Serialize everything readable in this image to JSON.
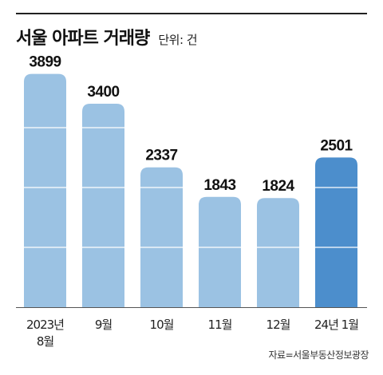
{
  "header": {
    "title": "서울 아파트 거래량",
    "unit": "단위: 건"
  },
  "footer": {
    "source": "자료=서울부동산정보광장"
  },
  "colors": {
    "bar": "#9bc2e3",
    "highlight_bar": "#4c8ecc",
    "gridline": "#ffffff",
    "axis": "#555555",
    "text": "#111111"
  },
  "chart_data": {
    "type": "bar",
    "categories": [
      [
        "2023년",
        "8월"
      ],
      [
        "9월"
      ],
      [
        "10월"
      ],
      [
        "11월"
      ],
      [
        "12월"
      ],
      [
        "24년 1월"
      ]
    ],
    "values": [
      3899,
      3400,
      2337,
      1843,
      1824,
      2501
    ],
    "value_labels": [
      "3899",
      "3400",
      "2337",
      "1843",
      "1824",
      "2501"
    ],
    "highlight_index": 5,
    "ylim": [
      0,
      4000
    ],
    "grid": true,
    "title": "서울 아파트 거래량",
    "xlabel": "",
    "ylabel": ""
  }
}
